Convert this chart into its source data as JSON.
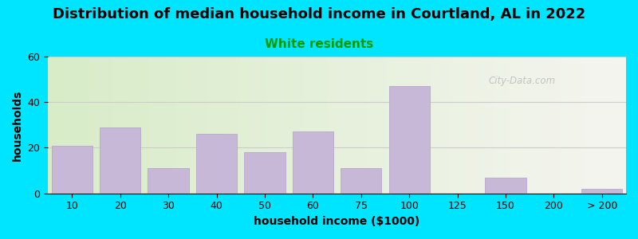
{
  "title": "Distribution of median household income in Courtland, AL in 2022",
  "subtitle": "White residents",
  "xlabel": "household income ($1000)",
  "ylabel": "households",
  "categories": [
    "10",
    "20",
    "30",
    "40",
    "50",
    "60",
    "75",
    "100",
    "125",
    "150",
    "200",
    "> 200"
  ],
  "values": [
    21,
    29,
    11,
    26,
    18,
    27,
    11,
    47,
    0,
    7,
    0,
    2
  ],
  "bar_color": "#c8b8d8",
  "bar_edgecolor": "#b0a0c8",
  "ylim": [
    0,
    60
  ],
  "yticks": [
    0,
    20,
    40,
    60
  ],
  "bg_outer": "#00e5ff",
  "bg_inner_left": "#d8ecc8",
  "bg_inner_right": "#f5f5f0",
  "title_fontsize": 13,
  "subtitle_fontsize": 11,
  "subtitle_color": "#009900",
  "axis_label_fontsize": 10,
  "tick_fontsize": 9,
  "watermark": "City-Data.com"
}
